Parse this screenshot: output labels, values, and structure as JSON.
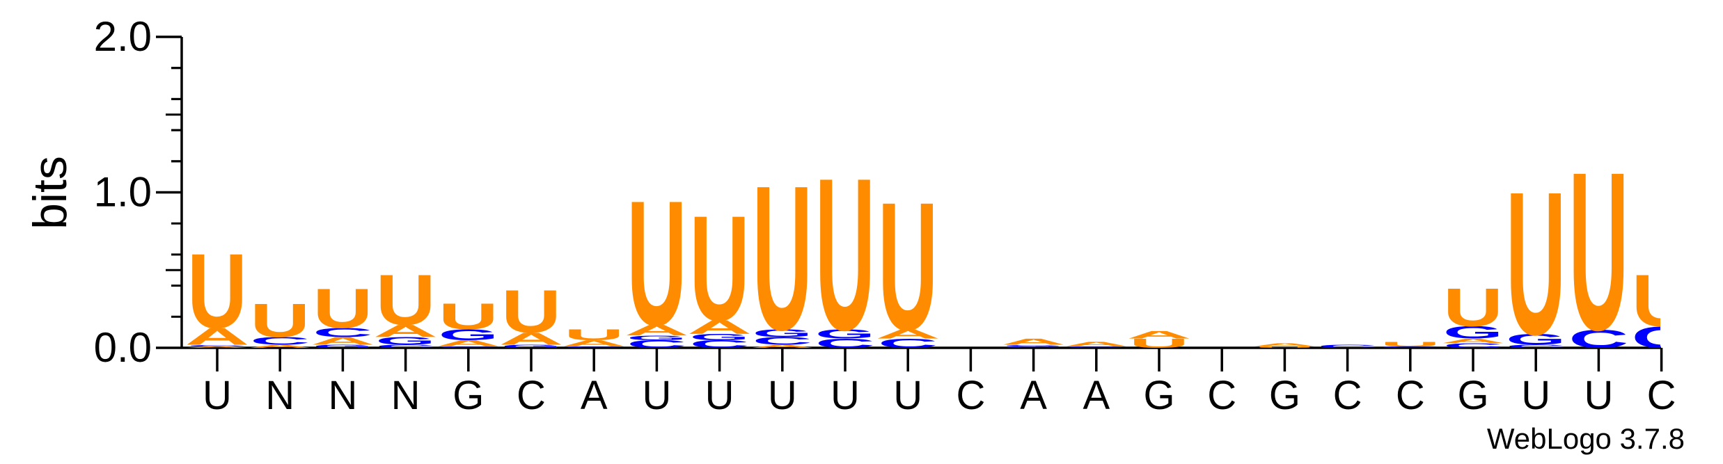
{
  "chart_data": {
    "type": "sequence-logo",
    "ylabel": "bits",
    "ylim": [
      0,
      2.0
    ],
    "y_ticks": [
      "0.0",
      "1.0",
      "2.0"
    ],
    "y_tick_values": [
      0,
      1,
      2
    ],
    "x_tick_labels": [
      "U",
      "N",
      "N",
      "N",
      "G",
      "C",
      "A",
      "U",
      "U",
      "U",
      "U",
      "U",
      "C",
      "A",
      "A",
      "G",
      "C",
      "G",
      "C",
      "C",
      "G",
      "U",
      "U",
      "C"
    ],
    "colors": {
      "U": "#FF8C00",
      "A": "#FF8C00",
      "C": "#0000FF",
      "G": "#0000FF"
    },
    "positions": [
      {
        "stack": [
          [
            "A",
            0.01
          ],
          [
            "C",
            0.01
          ],
          [
            "A",
            0.11
          ],
          [
            "U",
            0.49
          ]
        ]
      },
      {
        "stack": [
          [
            "A",
            0.02
          ],
          [
            "C",
            0.05
          ],
          [
            "U",
            0.22
          ]
        ]
      },
      {
        "stack": [
          [
            "G",
            0.02
          ],
          [
            "A",
            0.05
          ],
          [
            "C",
            0.06
          ],
          [
            "U",
            0.26
          ]
        ]
      },
      {
        "stack": [
          [
            "C",
            0.02
          ],
          [
            "G",
            0.05
          ],
          [
            "A",
            0.08
          ],
          [
            "U",
            0.33
          ]
        ]
      },
      {
        "stack": [
          [
            "C",
            0.01
          ],
          [
            "A",
            0.04
          ],
          [
            "G",
            0.07
          ],
          [
            "U",
            0.17
          ]
        ]
      },
      {
        "stack": [
          [
            "G",
            0.02
          ],
          [
            "A",
            0.08
          ],
          [
            "U",
            0.28
          ]
        ]
      },
      {
        "stack": [
          [
            "C",
            0.01
          ],
          [
            "A",
            0.04
          ],
          [
            "U",
            0.07
          ]
        ]
      },
      {
        "stack": [
          [
            "C",
            0.05
          ],
          [
            "G",
            0.03
          ],
          [
            "A",
            0.07
          ],
          [
            "U",
            0.82
          ]
        ]
      },
      {
        "stack": [
          [
            "C",
            0.05
          ],
          [
            "G",
            0.04
          ],
          [
            "A",
            0.09
          ],
          [
            "U",
            0.69
          ]
        ]
      },
      {
        "stack": [
          [
            "A",
            0.02
          ],
          [
            "C",
            0.05
          ],
          [
            "G",
            0.05
          ],
          [
            "U",
            0.95
          ]
        ]
      },
      {
        "stack": [
          [
            "C",
            0.06
          ],
          [
            "G",
            0.06
          ],
          [
            "U",
            1.0
          ]
        ]
      },
      {
        "stack": [
          [
            "C",
            0.06
          ],
          [
            "A",
            0.06
          ],
          [
            "U",
            0.84
          ]
        ]
      },
      {
        "stack": []
      },
      {
        "stack": [
          [
            "C",
            0.01
          ],
          [
            "G",
            0.01
          ],
          [
            "A",
            0.04
          ]
        ]
      },
      {
        "stack": [
          [
            "G",
            0.01
          ],
          [
            "A",
            0.03
          ]
        ]
      },
      {
        "stack": [
          [
            "U",
            0.06
          ],
          [
            "A",
            0.05
          ]
        ]
      },
      {
        "stack": []
      },
      {
        "stack": [
          [
            "U",
            0.01
          ],
          [
            "A",
            0.02
          ]
        ]
      },
      {
        "stack": [
          [
            "C",
            0.02
          ]
        ]
      },
      {
        "stack": [
          [
            "C",
            0.01
          ],
          [
            "U",
            0.03
          ]
        ]
      },
      {
        "stack": [
          [
            "C",
            0.03
          ],
          [
            "A",
            0.03
          ],
          [
            "G",
            0.08
          ],
          [
            "U",
            0.25
          ]
        ]
      },
      {
        "stack": [
          [
            "C",
            0.02
          ],
          [
            "G",
            0.07
          ],
          [
            "U",
            0.94
          ]
        ]
      },
      {
        "stack": [
          [
            "C",
            0.12
          ],
          [
            "U",
            1.04
          ]
        ]
      },
      {
        "stack": [
          [
            "C",
            0.14
          ],
          [
            "U",
            0.34
          ]
        ]
      }
    ]
  },
  "watermark": "WebLogo 3.7.8"
}
